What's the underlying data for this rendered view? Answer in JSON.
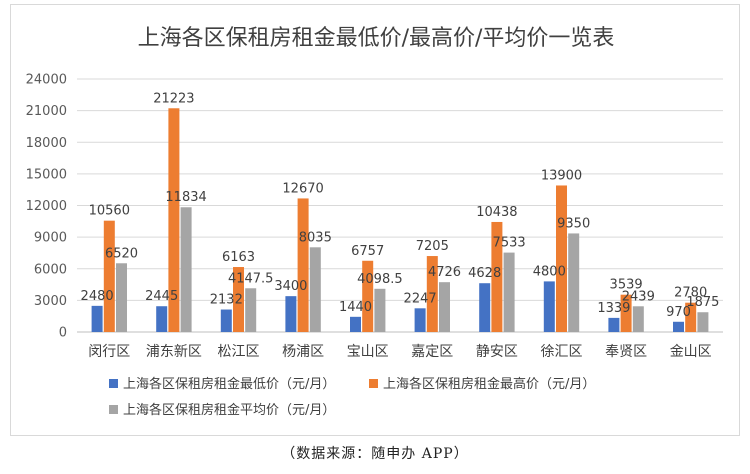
{
  "chart_data": {
    "type": "bar",
    "title": "上海各区保租房租金最低价/最高价/平均价一览表",
    "xlabel": "",
    "ylabel": "",
    "ylim": [
      0,
      24000
    ],
    "yticks": [
      0,
      3000,
      6000,
      9000,
      12000,
      15000,
      18000,
      21000,
      24000
    ],
    "grid": true,
    "legend_position": "bottom",
    "categories": [
      "闵行区",
      "浦东新区",
      "松江区",
      "杨浦区",
      "宝山区",
      "嘉定区",
      "静安区",
      "徐汇区",
      "奉贤区",
      "金山区"
    ],
    "series": [
      {
        "name": "上海各区保租房租金最低价（元/月）",
        "color": "#4472C4",
        "values": [
          2480,
          2445,
          2132,
          3400,
          1440,
          2247,
          4628,
          4800,
          1339,
          970
        ]
      },
      {
        "name": "上海各区保租房租金最高价（元/月）",
        "color": "#ED7D31",
        "values": [
          10560,
          21223,
          6163,
          12670,
          6757,
          7205,
          10438,
          13900,
          3539,
          2780
        ]
      },
      {
        "name": "上海各区保租房租金平均价（元/月）",
        "color": "#A5A5A5",
        "values": [
          6520,
          11834,
          4147.5,
          8035,
          4098.5,
          4726,
          7533,
          9350,
          2439,
          1875
        ]
      }
    ]
  },
  "source_note": "（数据来源：随申办 APP）"
}
